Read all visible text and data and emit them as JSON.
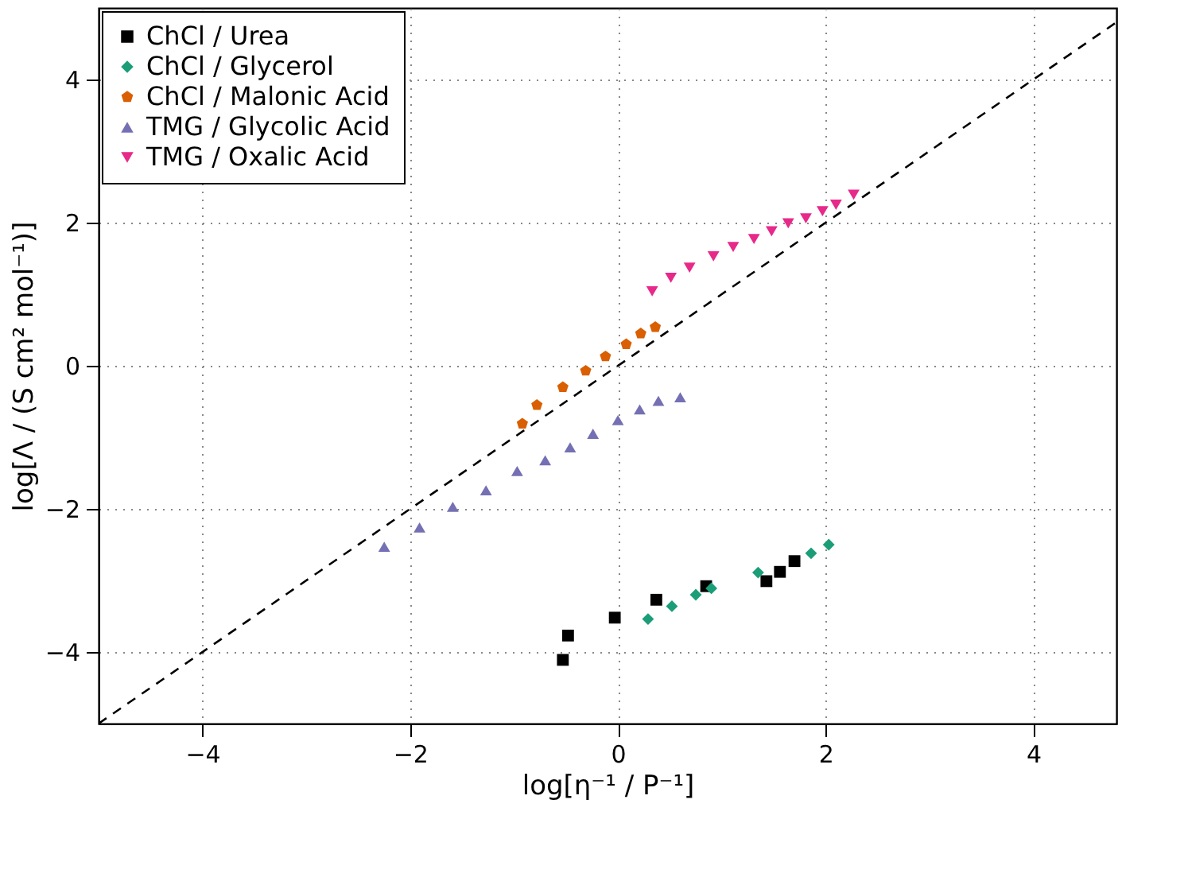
{
  "chart_data": {
    "type": "scatter",
    "xlabel": "log[η⁻¹ / P⁻¹]",
    "ylabel": "log[Λ / (S cm² mol⁻¹)]",
    "xlim": [
      -5,
      4.8
    ],
    "ylim": [
      -5,
      5
    ],
    "xticks": [
      -4,
      -2,
      0,
      2,
      4
    ],
    "yticks": [
      -4,
      -2,
      0,
      2,
      4
    ],
    "grid": true,
    "legend": "top left",
    "series": [
      {
        "name": "ChCl / Urea",
        "color": "#000000",
        "marker": "square",
        "x": [
          -0.53,
          -0.48,
          -0.03,
          0.37,
          0.85,
          1.43,
          1.56,
          1.7
        ],
        "values": [
          -4.11,
          -3.77,
          -3.52,
          -3.27,
          -3.08,
          -3.01,
          -2.88,
          -2.73
        ]
      },
      {
        "name": "ChCl / Glycerol",
        "color": "#1b9e77",
        "marker": "diamond",
        "x": [
          0.29,
          0.52,
          0.75,
          0.9,
          1.35,
          1.86,
          2.03
        ],
        "values": [
          -3.54,
          -3.36,
          -3.2,
          -3.11,
          -2.89,
          -2.62,
          -2.5
        ]
      },
      {
        "name": "ChCl / Malonic Acid",
        "color": "#d95f02",
        "x": [
          -0.92,
          -0.78,
          -0.53,
          -0.31,
          -0.12,
          0.08,
          0.22,
          0.36
        ],
        "values": [
          -0.81,
          -0.55,
          -0.3,
          -0.07,
          0.13,
          0.3,
          0.45,
          0.54
        ]
      },
      {
        "name": "TMG / Glycolic Acid",
        "color": "#7570b3",
        "marker": "triangle-up",
        "x": [
          -2.25,
          -1.91,
          -1.59,
          -1.27,
          -0.97,
          -0.7,
          -0.46,
          -0.24,
          0.0,
          0.21,
          0.39,
          0.6
        ],
        "values": [
          -2.53,
          -2.26,
          -1.97,
          -1.74,
          -1.47,
          -1.32,
          -1.14,
          -0.95,
          -0.76,
          -0.61,
          -0.49,
          -0.44
        ]
      },
      {
        "name": "TMG / Oxalic Acid",
        "color": "#e7298a",
        "marker": "triangle-down",
        "x": [
          0.33,
          0.51,
          0.69,
          0.92,
          1.11,
          1.31,
          1.48,
          1.64,
          1.81,
          1.97,
          2.1,
          2.27
        ],
        "values": [
          1.04,
          1.23,
          1.37,
          1.53,
          1.66,
          1.77,
          1.88,
          1.99,
          2.06,
          2.16,
          2.25,
          2.39
        ]
      },
      {
        "type": "line",
        "color": "#000000",
        "line_style": "dashed",
        "x": [
          -5,
          4.8
        ],
        "values": [
          -5,
          4.8
        ]
      }
    ]
  }
}
